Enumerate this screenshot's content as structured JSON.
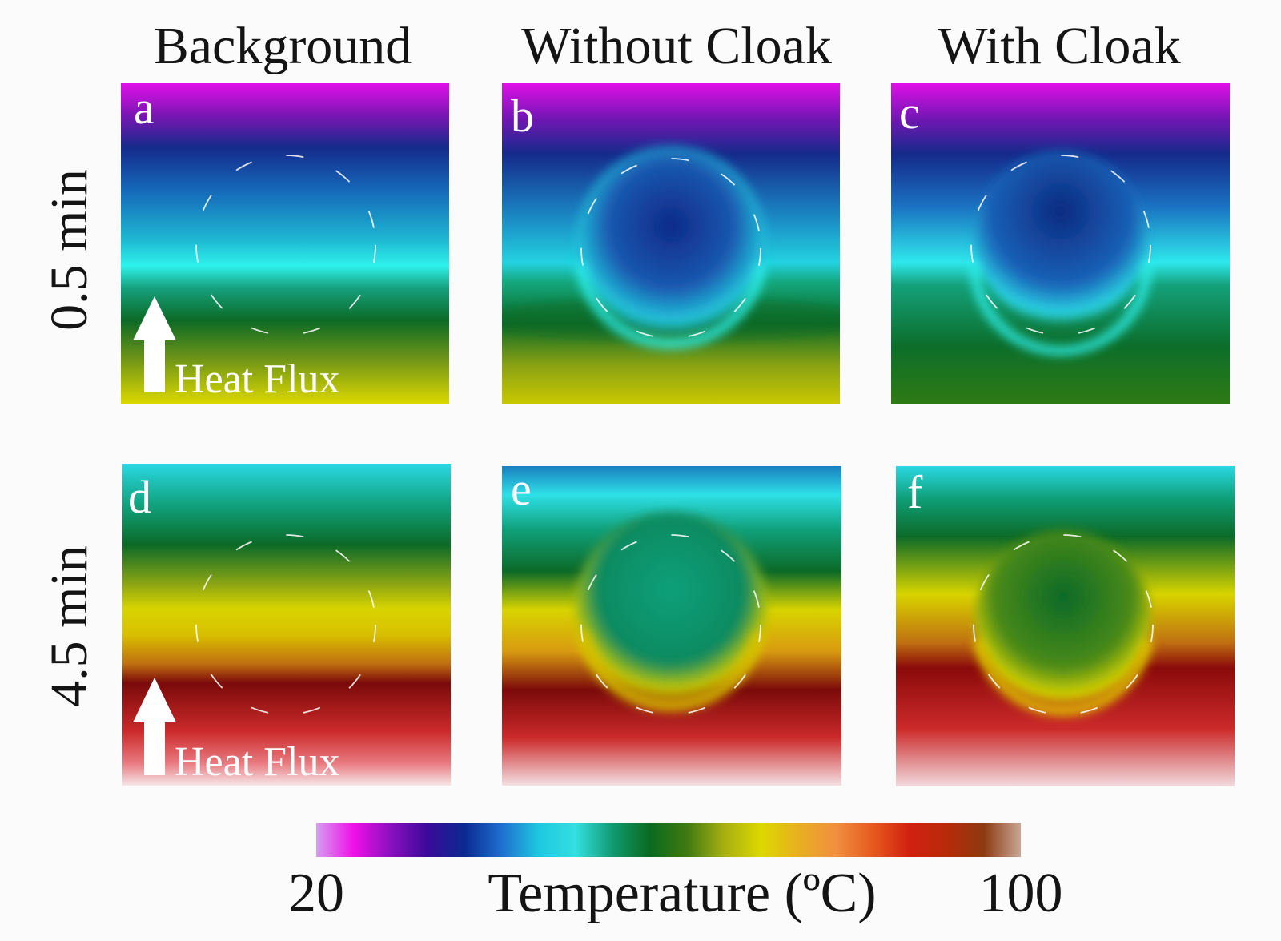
{
  "columns": [
    "Background",
    "Without Cloak",
    "With Cloak"
  ],
  "rows": [
    "0.5 min",
    "4.5 min"
  ],
  "panels": [
    {
      "label": "a",
      "time": "0.5 min",
      "case": "background"
    },
    {
      "label": "b",
      "time": "0.5 min",
      "case": "without_cloak"
    },
    {
      "label": "c",
      "time": "0.5 min",
      "case": "with_cloak"
    },
    {
      "label": "d",
      "time": "4.5 min",
      "case": "background"
    },
    {
      "label": "e",
      "time": "4.5 min",
      "case": "without_cloak"
    },
    {
      "label": "f",
      "time": "4.5 min",
      "case": "with_cloak"
    }
  ],
  "arrow_text": "Heat Flux",
  "colorbar": {
    "min_label": "20",
    "max_label": "100",
    "title": "Temperature (ºC)",
    "colors": [
      "#d69ef0",
      "#f010e8",
      "#8a10c0",
      "#3a0a9a",
      "#0a2a90",
      "#1f6fd0",
      "#1ec8e0",
      "#33dfe0",
      "#109a70",
      "#0a6a20",
      "#3f7a10",
      "#a8b010",
      "#dcd800",
      "#e8b020",
      "#f09040",
      "#e85a20",
      "#d02010",
      "#b82a0a",
      "#8c3a10",
      "#c9a694"
    ]
  },
  "colors": {
    "ink": "#141414",
    "panel_text": "#ffffff",
    "background": "#fbfbfb"
  }
}
